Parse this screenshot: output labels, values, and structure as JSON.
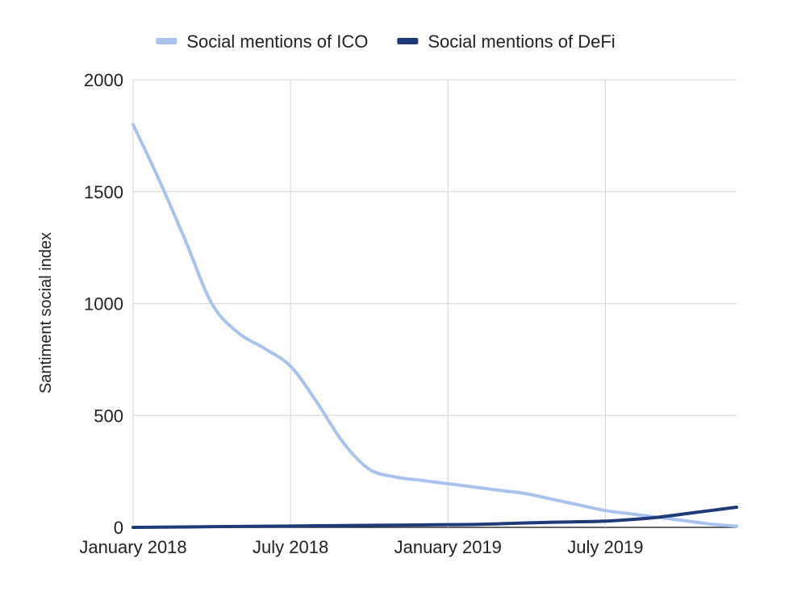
{
  "chart_data": {
    "type": "line",
    "title": "",
    "xlabel": "",
    "ylabel": "Santiment social index",
    "ylim": [
      0,
      2000
    ],
    "xlim": [
      "2018-01",
      "2019-12"
    ],
    "y_ticks": [
      "0",
      "500",
      "1000",
      "1500",
      "2000"
    ],
    "x_ticks": [
      {
        "date": "2018-01",
        "label": "January 2018"
      },
      {
        "date": "2018-07",
        "label": "July 2018"
      },
      {
        "date": "2019-01",
        "label": "January 2019"
      },
      {
        "date": "2019-07",
        "label": "July 2019"
      }
    ],
    "grid": true,
    "legend_position": "top",
    "x": [
      "2018-01",
      "2018-02",
      "2018-03",
      "2018-04",
      "2018-05",
      "2018-06",
      "2018-07",
      "2018-08",
      "2018-09",
      "2018-10",
      "2018-11",
      "2018-12",
      "2019-01",
      "2019-02",
      "2019-03",
      "2019-04",
      "2019-05",
      "2019-06",
      "2019-07",
      "2019-08",
      "2019-09",
      "2019-10",
      "2019-11",
      "2019-12"
    ],
    "series": [
      {
        "name": "Social mentions of ICO",
        "color": "#a9c3ee",
        "values": [
          1800,
          1550,
          1280,
          1000,
          870,
          800,
          720,
          560,
          380,
          260,
          225,
          210,
          195,
          180,
          165,
          150,
          125,
          100,
          75,
          60,
          45,
          30,
          15,
          5
        ]
      },
      {
        "name": "Social mentions of DeFi",
        "color": "#1e3a78",
        "values": [
          0,
          1,
          2,
          3,
          4,
          5,
          6,
          7,
          8,
          9,
          10,
          11,
          12,
          13,
          16,
          20,
          23,
          25,
          28,
          35,
          45,
          60,
          75,
          90
        ]
      }
    ]
  }
}
